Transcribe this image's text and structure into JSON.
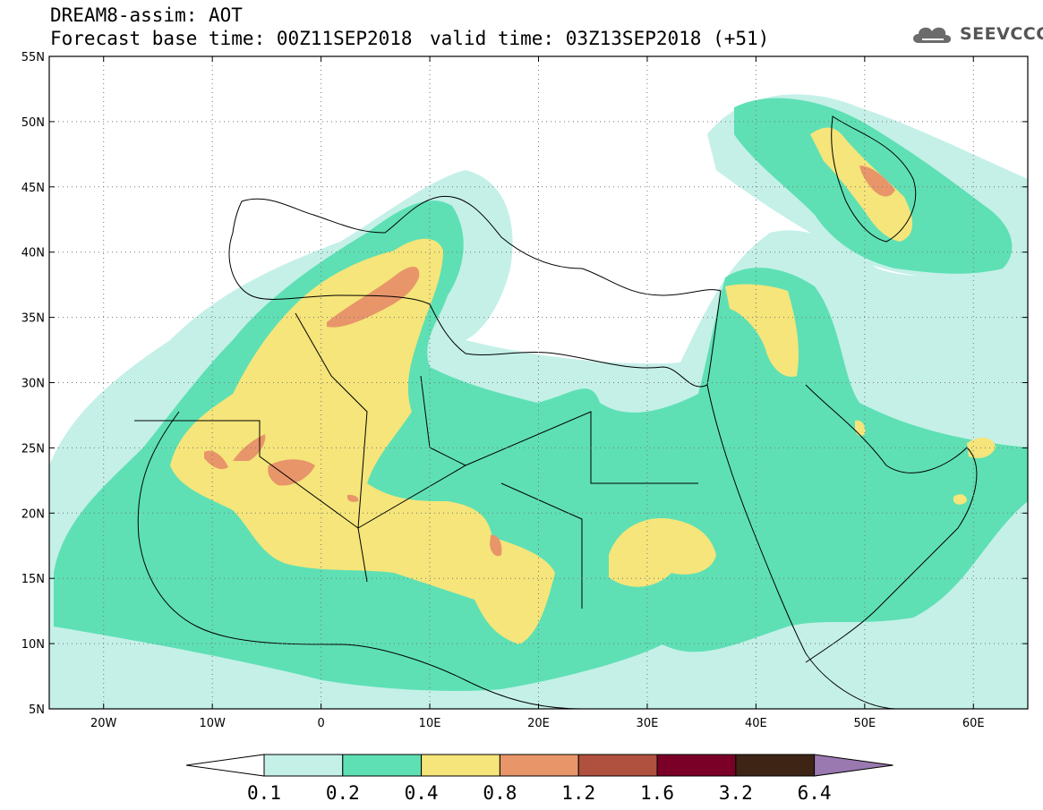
{
  "header": {
    "title": "DREAM8-assim: AOT",
    "base_time": "Forecast base time: 00Z11SEP2018",
    "valid_time": "valid time: 03Z13SEP2018 (+51)"
  },
  "logo": {
    "text": "SEEVCCC",
    "icon": "cloud-icon"
  },
  "map": {
    "lon_range": [
      -25,
      65
    ],
    "lat_range": [
      5,
      55
    ],
    "lon_ticks": [
      "20W",
      "10W",
      "0",
      "10E",
      "20E",
      "30E",
      "40E",
      "50E",
      "60E"
    ],
    "lat_ticks": [
      "55N",
      "50N",
      "45N",
      "40N",
      "35N",
      "30N",
      "25N",
      "20N",
      "15N",
      "10N",
      "5N"
    ],
    "gridlines": "dotted"
  },
  "colorbar": {
    "labels": [
      "0.1",
      "0.2",
      "0.4",
      "0.8",
      "1.2",
      "1.6",
      "3.2",
      "6.4"
    ],
    "colors": [
      "#c4f0e8",
      "#5ee0b4",
      "#f5e57a",
      "#e8956a",
      "#b0503e",
      "#7a0028",
      "#3d2414",
      "#9a78b0"
    ]
  }
}
